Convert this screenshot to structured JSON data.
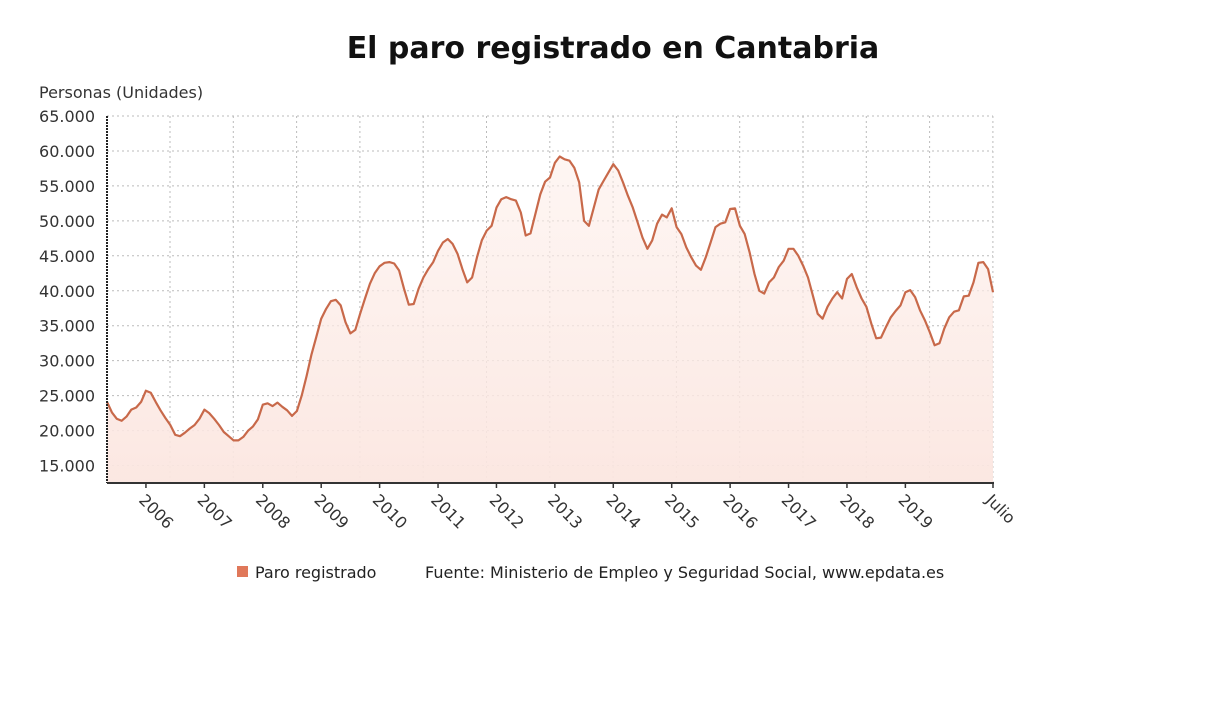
{
  "chart_data": {
    "type": "area",
    "title": "El paro registrado en Cantabria",
    "ylabel": "Personas (Unidades)",
    "xlabel": "",
    "ylim": [
      12500,
      65000
    ],
    "yticks": [
      15000,
      20000,
      25000,
      30000,
      35000,
      40000,
      45000,
      50000,
      55000,
      60000,
      65000
    ],
    "ytick_labels": [
      "15.000",
      "20.000",
      "25.000",
      "30.000",
      "35.000",
      "40.000",
      "45.000",
      "50.000",
      "55.000",
      "60.000",
      "65.000"
    ],
    "xtick_labels": [
      "2006",
      "2007",
      "2008",
      "2009",
      "2010",
      "2011",
      "2012",
      "2013",
      "2014",
      "2015",
      "2016",
      "2017",
      "2018",
      "2019",
      "Julio"
    ],
    "xtick_months": [
      "2006-01",
      "2007-01",
      "2008-01",
      "2009-01",
      "2010-01",
      "2011-01",
      "2012-01",
      "2013-01",
      "2014-01",
      "2015-01",
      "2016-01",
      "2017-01",
      "2018-01",
      "2019-01",
      "2020-07"
    ],
    "grid": true,
    "legend_position": "bottom",
    "line_color": "#c8694a",
    "fill_color": "#fdeee9",
    "legend_color": "#e0785a",
    "series": [
      {
        "name": "Paro registrado",
        "x_range": [
          "2005-05",
          "2020-07"
        ],
        "values": [
          24100,
          22600,
          21700,
          21400,
          22000,
          23000,
          23300,
          24100,
          25700,
          25400,
          24100,
          22900,
          21800,
          20800,
          19400,
          19200,
          19700,
          20300,
          20800,
          21700,
          23000,
          22500,
          21700,
          20800,
          19800,
          19200,
          18600,
          18600,
          19100,
          20000,
          20600,
          21600,
          23700,
          23900,
          23500,
          24000,
          23400,
          22900,
          22100,
          22800,
          25000,
          27800,
          30900,
          33400,
          36000,
          37400,
          38500,
          38700,
          37900,
          35500,
          33900,
          34400,
          36700,
          38900,
          41000,
          42500,
          43500,
          44000,
          44100,
          43900,
          42900,
          40300,
          38000,
          38100,
          40300,
          41900,
          43100,
          44100,
          45700,
          46900,
          47400,
          46700,
          45300,
          43100,
          41200,
          41900,
          44800,
          47200,
          48600,
          49300,
          51900,
          53100,
          53400,
          53100,
          52900,
          51200,
          47900,
          48200,
          51000,
          53800,
          55600,
          56200,
          58300,
          59200,
          58800,
          58600,
          57600,
          55500,
          50000,
          49300,
          51900,
          54500,
          55700,
          56900,
          58100,
          57200,
          55500,
          53600,
          51900,
          49800,
          47600,
          46000,
          47200,
          49600,
          50900,
          50500,
          51800,
          49100,
          48100,
          46200,
          44800,
          43600,
          43000,
          44800,
          46900,
          49100,
          49600,
          49800,
          51700,
          51800,
          49300,
          48100,
          45500,
          42400,
          40000,
          39600,
          41200,
          41900,
          43400,
          44300,
          46000,
          46000,
          45000,
          43600,
          41900,
          39300,
          36700,
          36000,
          37700,
          38900,
          39800,
          38900,
          41700,
          42400,
          40500,
          38900,
          37700,
          35300,
          33200,
          33300,
          34800,
          36200,
          37100,
          37900,
          39800,
          40100,
          39100,
          37200,
          35800,
          34100,
          32200,
          32500,
          34600,
          36200,
          37000,
          37200,
          39200,
          39300,
          41200,
          44000,
          44100,
          43100,
          39800
        ]
      }
    ],
    "legend": {
      "label": "Paro registrado",
      "source": "Fuente: Ministerio de Empleo y Seguridad Social, www.epdata.es"
    }
  }
}
